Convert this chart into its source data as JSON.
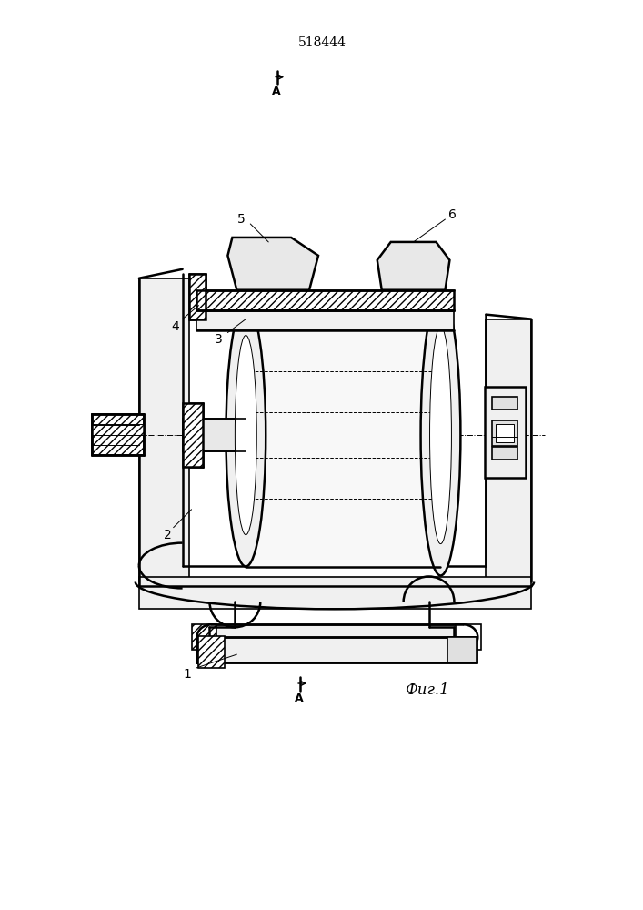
{
  "title": "518444",
  "fig_caption": "Фиг.1",
  "background_color": "#ffffff",
  "line_color": "#000000",
  "figsize": [
    7.07,
    10.0
  ],
  "dpi": 100
}
